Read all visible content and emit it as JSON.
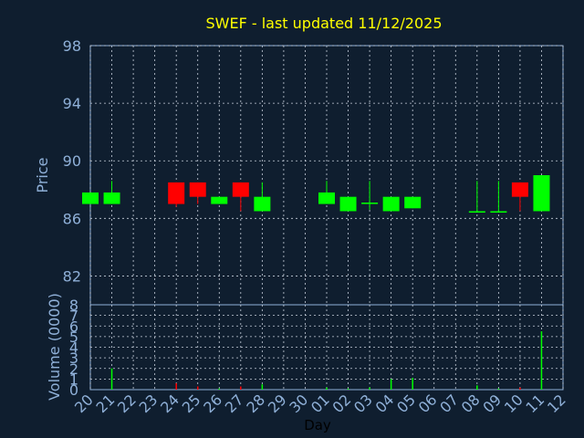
{
  "chart_data": [
    {
      "type": "candlestick",
      "title": "SWEF - last updated 11/12/2025",
      "ylabel": "Price",
      "ylim": [
        80,
        98
      ],
      "yticks": [
        98,
        94,
        90,
        86,
        82
      ],
      "grid": true,
      "categories": [
        "20",
        "21",
        "22",
        "23",
        "24",
        "25",
        "26",
        "27",
        "28",
        "29",
        "30",
        "01",
        "02",
        "03",
        "04",
        "05",
        "06",
        "07",
        "08",
        "09",
        "10",
        "11",
        "12"
      ],
      "candles": [
        {
          "day": "20",
          "open": 87.0,
          "close": 87.8,
          "high": 87.8,
          "low": 87.0
        },
        {
          "day": "21",
          "open": 87.0,
          "close": 87.8,
          "high": 88.6,
          "low": 87.0
        },
        {
          "day": "24",
          "open": 88.5,
          "close": 87.0,
          "high": 88.5,
          "low": 86.8
        },
        {
          "day": "25",
          "open": 88.5,
          "close": 87.5,
          "high": 88.5,
          "low": 87.0
        },
        {
          "day": "26",
          "open": 87.0,
          "close": 87.5,
          "high": 87.5,
          "low": 87.0
        },
        {
          "day": "27",
          "open": 88.5,
          "close": 87.5,
          "high": 88.5,
          "low": 86.5
        },
        {
          "day": "28",
          "open": 86.5,
          "close": 87.5,
          "high": 88.5,
          "low": 86.5
        },
        {
          "day": "01",
          "open": 87.0,
          "close": 87.8,
          "high": 88.6,
          "low": 87.0
        },
        {
          "day": "02",
          "open": 86.5,
          "close": 87.5,
          "high": 87.5,
          "low": 86.5
        },
        {
          "day": "03",
          "open": 87.0,
          "close": 87.1,
          "high": 88.6,
          "low": 86.6
        },
        {
          "day": "04",
          "open": 86.5,
          "close": 87.5,
          "high": 87.5,
          "low": 86.5
        },
        {
          "day": "05",
          "open": 86.7,
          "close": 87.5,
          "high": 87.5,
          "low": 86.7
        },
        {
          "day": "08",
          "open": 86.4,
          "close": 86.5,
          "high": 88.6,
          "low": 86.4
        },
        {
          "day": "09",
          "open": 86.4,
          "close": 86.5,
          "high": 88.6,
          "low": 86.4
        },
        {
          "day": "10",
          "open": 88.5,
          "close": 87.5,
          "high": 88.5,
          "low": 86.5
        },
        {
          "day": "11",
          "open": 86.5,
          "close": 89.0,
          "high": 89.0,
          "low": 86.5
        }
      ],
      "colors": {
        "up": "#00ff00",
        "down": "#ff0000"
      }
    },
    {
      "type": "bar",
      "ylabel": "Volume (0000)",
      "xlabel": "Day",
      "ylim": [
        0,
        8
      ],
      "yticks": [
        8,
        7,
        6,
        5,
        4,
        3,
        2,
        1,
        0
      ],
      "grid": true,
      "categories": [
        "20",
        "21",
        "22",
        "23",
        "24",
        "25",
        "26",
        "27",
        "28",
        "29",
        "30",
        "01",
        "02",
        "03",
        "04",
        "05",
        "06",
        "07",
        "08",
        "09",
        "10",
        "11",
        "12"
      ],
      "bars": [
        {
          "day": "20",
          "value": 0.0,
          "color": "#00ff00"
        },
        {
          "day": "21",
          "value": 2.0,
          "color": "#00ff00"
        },
        {
          "day": "24",
          "value": 0.6,
          "color": "#ff0000"
        },
        {
          "day": "25",
          "value": 0.3,
          "color": "#ff0000"
        },
        {
          "day": "26",
          "value": 0.1,
          "color": "#00ff00"
        },
        {
          "day": "27",
          "value": 0.3,
          "color": "#ff0000"
        },
        {
          "day": "28",
          "value": 0.5,
          "color": "#00ff00"
        },
        {
          "day": "01",
          "value": 0.2,
          "color": "#00ff00"
        },
        {
          "day": "02",
          "value": 0.1,
          "color": "#00ff00"
        },
        {
          "day": "03",
          "value": 0.2,
          "color": "#00ff00"
        },
        {
          "day": "04",
          "value": 1.0,
          "color": "#00ff00"
        },
        {
          "day": "05",
          "value": 1.1,
          "color": "#00ff00"
        },
        {
          "day": "08",
          "value": 0.4,
          "color": "#00ff00"
        },
        {
          "day": "09",
          "value": 0.1,
          "color": "#00ff00"
        },
        {
          "day": "10",
          "value": 0.2,
          "color": "#ff0000"
        },
        {
          "day": "11",
          "value": 5.5,
          "color": "#00ff00"
        }
      ]
    }
  ],
  "style": {
    "background": "#0f1e2f",
    "plot_frame": "#8fb0d8",
    "grid": "#c8d0dc",
    "axis_text": "#8fb0d8",
    "title_color": "#ffff00",
    "day_label_color": "#000000"
  }
}
